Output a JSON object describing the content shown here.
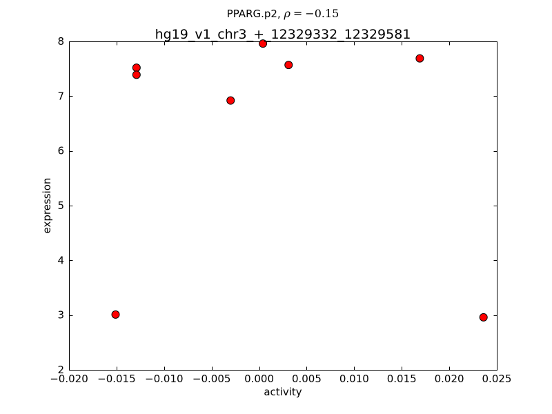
{
  "figure": {
    "background": "#ffffff"
  },
  "chart_data": {
    "type": "scatter",
    "title": {
      "prefix": "PPARG.p2, ",
      "rho_symbol": "ρ",
      "equals": "=",
      "rho_value": "−0.15",
      "plain": "PPARG.p2, ρ=−0.15"
    },
    "subtitle": "hg19_v1_chr3_+_12329332_12329581",
    "xlabel": "activity",
    "ylabel": "expression",
    "xlim": [
      -0.02,
      0.025
    ],
    "ylim": [
      2,
      8
    ],
    "xtick_values": [
      -0.02,
      -0.015,
      -0.01,
      -0.005,
      0.0,
      0.005,
      0.01,
      0.015,
      0.02,
      0.025
    ],
    "xtick_labels": [
      "−0.020",
      "−0.015",
      "−0.010",
      "−0.005",
      "0.000",
      "0.005",
      "0.010",
      "0.015",
      "0.020",
      "0.025"
    ],
    "ytick_values": [
      2,
      3,
      4,
      5,
      6,
      7,
      8
    ],
    "ytick_labels": [
      "2",
      "3",
      "4",
      "5",
      "6",
      "7",
      "8"
    ],
    "grid": false,
    "legend": null,
    "points": [
      {
        "x": -0.0129,
        "y": 7.52
      },
      {
        "x": -0.0129,
        "y": 7.39
      },
      {
        "x": -0.003,
        "y": 6.92
      },
      {
        "x": 0.0004,
        "y": 7.96
      },
      {
        "x": 0.0031,
        "y": 7.57
      },
      {
        "x": 0.0169,
        "y": 7.69
      },
      {
        "x": -0.0151,
        "y": 3.01
      },
      {
        "x": 0.0236,
        "y": 2.96
      }
    ],
    "marker": {
      "shape": "circle",
      "fill": "#ff0000",
      "edge": "#000000",
      "radius": 5.5
    },
    "axis_color": "#000000"
  }
}
